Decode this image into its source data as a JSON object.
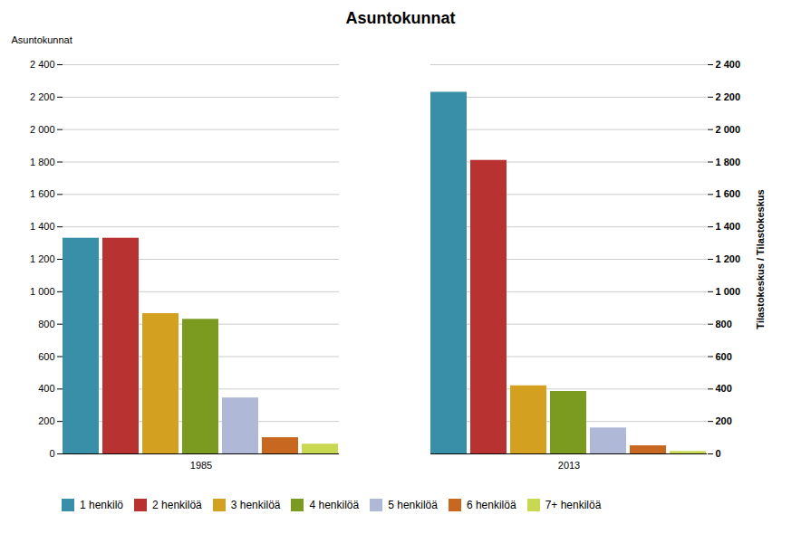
{
  "chart_data": {
    "type": "bar",
    "title": "Asuntokunnat",
    "ylabel": "Asuntokunnat",
    "y2label": "Tilastokeskus / Tilastokeskus",
    "categories": [
      "1985",
      "2013"
    ],
    "series": [
      {
        "name": "1 henkilö",
        "color": "#3a8fa8",
        "values": [
          1330,
          2230
        ]
      },
      {
        "name": "2 henkilöä",
        "color": "#b83232",
        "values": [
          1330,
          1810
        ]
      },
      {
        "name": "3 henkilöä",
        "color": "#d4a020",
        "values": [
          865,
          420
        ]
      },
      {
        "name": "4 henkilöä",
        "color": "#7a9a20",
        "values": [
          830,
          385
        ]
      },
      {
        "name": "5 henkilöä",
        "color": "#b0b8d8",
        "values": [
          345,
          160
        ]
      },
      {
        "name": "6 henkilöä",
        "color": "#c86820",
        "values": [
          100,
          50
        ]
      },
      {
        "name": "7+ henkilöä",
        "color": "#c8d850",
        "values": [
          60,
          15
        ]
      }
    ],
    "ylim": [
      0,
      2400
    ],
    "yticks": [
      0,
      200,
      400,
      600,
      800,
      {
        "value": 1000,
        "label": "1 000"
      },
      {
        "value": 1200,
        "label": "1 200"
      },
      {
        "value": 1400,
        "label": "1 400"
      },
      {
        "value": 1600,
        "label": "1 600"
      },
      {
        "value": 1800,
        "label": "1 800"
      },
      {
        "value": 2000,
        "label": "2 000"
      },
      {
        "value": 2200,
        "label": "2 200"
      },
      {
        "value": 2400,
        "label": "2 400"
      }
    ],
    "y2lim": [
      0,
      2400
    ],
    "y2ticks": [
      0,
      200,
      400,
      600,
      800,
      {
        "value": 1000,
        "label": "1 000"
      },
      {
        "value": 1200,
        "label": "1 200"
      },
      {
        "value": 1400,
        "label": "1 400"
      },
      {
        "value": 1600,
        "label": "1 600"
      },
      {
        "value": 1800,
        "label": "1 800"
      },
      {
        "value": 2000,
        "label": "2 000"
      },
      {
        "value": 2200,
        "label": "2 200"
      },
      {
        "value": 2400,
        "label": "2 400"
      }
    ],
    "grid": true,
    "legend": "bottom"
  }
}
